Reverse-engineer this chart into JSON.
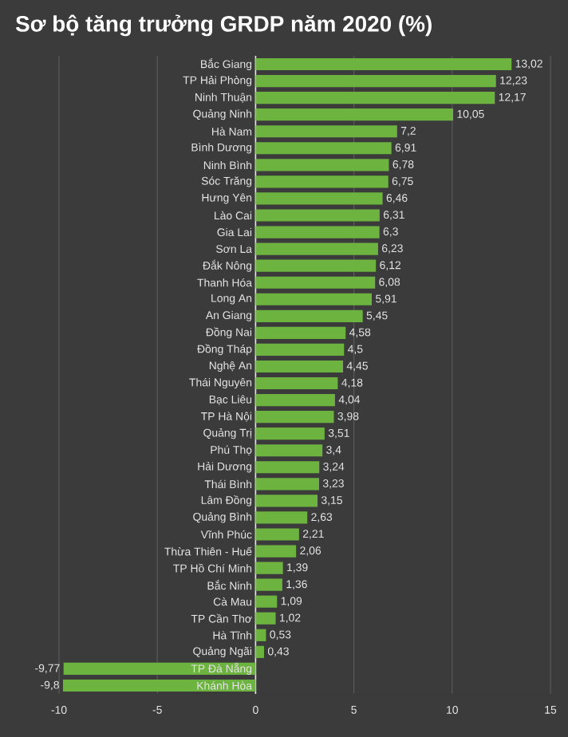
{
  "chart_data": {
    "type": "bar",
    "orientation": "horizontal",
    "title": "Sơ bộ tăng trưởng GRDP năm 2020 (%)",
    "categories": [
      "Bắc Giang",
      "TP Hải Phòng",
      "Ninh Thuận",
      "Quảng Ninh",
      "Hà Nam",
      "Bình Dương",
      "Ninh Bình",
      "Sóc Trăng",
      "Hưng Yên",
      "Lào Cai",
      "Gia Lai",
      "Sơn La",
      "Đắk Nông",
      "Thanh Hóa",
      "Long An",
      "An Giang",
      "Đồng Nai",
      "Đồng Tháp",
      "Nghệ An",
      "Thái Nguyên",
      "Bạc Liêu",
      "TP Hà Nội",
      "Quảng Trị",
      "Phú Thọ",
      "Hải Dương",
      "Thái Bình",
      "Lâm Đồng",
      "Quảng Bình",
      "Vĩnh Phúc",
      "Thừa Thiên - Huế",
      "TP Hồ Chí Minh",
      "Bắc Ninh",
      "Cà Mau",
      "TP Cần Thơ",
      "Hà Tĩnh",
      "Quảng Ngãi",
      "TP Đà Nẵng",
      "Khánh Hòa"
    ],
    "values": [
      13.02,
      12.23,
      12.17,
      10.05,
      7.2,
      6.91,
      6.78,
      6.75,
      6.46,
      6.31,
      6.3,
      6.23,
      6.12,
      6.08,
      5.91,
      5.45,
      4.58,
      4.5,
      4.45,
      4.18,
      4.04,
      3.98,
      3.51,
      3.4,
      3.24,
      3.23,
      3.15,
      2.63,
      2.21,
      2.06,
      1.39,
      1.36,
      1.09,
      1.02,
      0.53,
      0.43,
      -9.77,
      -9.8
    ],
    "value_labels": [
      "13,02",
      "12,23",
      "12,17",
      "10,05",
      "7,2",
      "6,91",
      "6,78",
      "6,75",
      "6,46",
      "6,31",
      "6,3",
      "6,23",
      "6,12",
      "6,08",
      "5,91",
      "5,45",
      "4,58",
      "4,5",
      "4,45",
      "4,18",
      "4,04",
      "3,98",
      "3,51",
      "3,4",
      "3,24",
      "3,23",
      "3,15",
      "2,63",
      "2,21",
      "2,06",
      "1,39",
      "1,36",
      "1,09",
      "1,02",
      "0,53",
      "0,43",
      "-9,77",
      "-9,8"
    ],
    "color": "#6db33f",
    "xlim": [
      -10,
      15
    ],
    "xticks": [
      -10,
      -5,
      0,
      5,
      10,
      15
    ],
    "grid": "x"
  }
}
